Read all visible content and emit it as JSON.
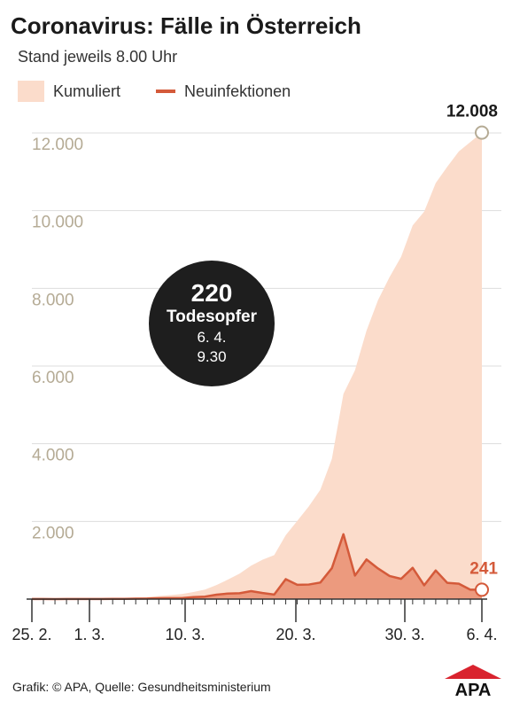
{
  "header": {
    "title": "Coronavirus: Fälle in Österreich",
    "subtitle": "Stand jeweils 8.00 Uhr"
  },
  "legend": {
    "cumulative": "Kumuliert",
    "new": "Neuinfektionen"
  },
  "badge": {
    "number": "220",
    "label": "Todesopfer",
    "date": "6. 4.",
    "time": "9.30"
  },
  "footer": {
    "source": "Grafik: © APA, Quelle: Gesundheitsministerium"
  },
  "logo": {
    "text": "APA"
  },
  "colors": {
    "cumulative_fill": "#fbdccb",
    "new_fill": "#ec9a7e",
    "new_line": "#d45a3a",
    "grid": "#dddddd",
    "tick_text": "#b5ab95"
  },
  "chart_data": {
    "type": "area",
    "x_start": "25.2.",
    "x_end": "6.4.",
    "xtick_labels": [
      "25. 2.",
      "1. 3.",
      "10. 3.",
      "20. 3.",
      "30. 3.",
      "6. 4."
    ],
    "ytick_labels": [
      "2.000",
      "4.000",
      "6.000",
      "8.000",
      "10.000",
      "12.000"
    ],
    "ylim": [
      0,
      12500
    ],
    "series": [
      {
        "name": "Kumuliert",
        "values": [
          2,
          4,
          5,
          8,
          10,
          14,
          18,
          24,
          29,
          41,
          55,
          79,
          104,
          131,
          182,
          246,
          361,
          504,
          655,
          860,
          1016,
          1132,
          1646,
          2013,
          2388,
          2814,
          3611,
          5282,
          5888,
          6909,
          7697,
          8291,
          8813,
          9618,
          9974,
          10711,
          11129,
          11525,
          11767,
          12008
        ],
        "end_label": "12.008"
      },
      {
        "name": "Neuinfektionen",
        "values": [
          2,
          2,
          1,
          3,
          2,
          4,
          4,
          6,
          5,
          12,
          14,
          24,
          25,
          27,
          51,
          64,
          115,
          143,
          151,
          205,
          156,
          116,
          514,
          367,
          375,
          426,
          797,
          1671,
          606,
          1021,
          788,
          594,
          522,
          805,
          356,
          737,
          418,
          396,
          242,
          241
        ],
        "end_label": "241"
      }
    ]
  }
}
